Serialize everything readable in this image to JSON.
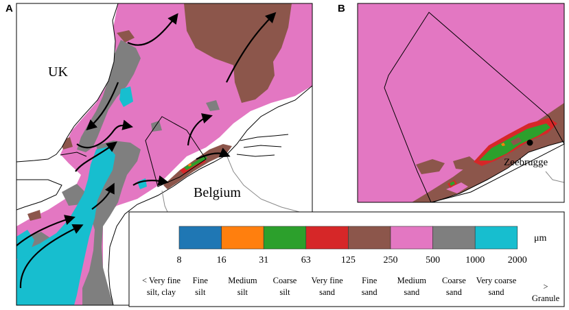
{
  "panels": [
    {
      "letter": "A",
      "labels": {
        "uk": "UK",
        "belgium": "Belgium"
      }
    },
    {
      "letter": "B",
      "labels": {
        "city": "Zeebrugge"
      }
    }
  ],
  "legend": {
    "unit": "μm",
    "ticks": [
      "8",
      "16",
      "31",
      "63",
      "125",
      "250",
      "500",
      "1000",
      "2000"
    ],
    "classes": [
      {
        "name": "< Very fine\nsilt, clay",
        "color": null
      },
      {
        "name": "Fine\nsilt",
        "color": "#1f77b4"
      },
      {
        "name": "Medium\nsilt",
        "color": "#ff7f0e"
      },
      {
        "name": "Coarse\nsilt",
        "color": "#2ca02c"
      },
      {
        "name": "Very fine\nsand",
        "color": "#d62728"
      },
      {
        "name": "Fine\nsand",
        "color": "#8c564b"
      },
      {
        "name": "Medium\nsand",
        "color": "#e377c2"
      },
      {
        "name": "Coarse\nsand",
        "color": "#7f7f7f"
      },
      {
        "name": "Very coarse\nsand",
        "color": "#17becf"
      },
      {
        "name": "> Granule",
        "color": null
      }
    ]
  },
  "colors": {
    "fine_silt": "#1f77b4",
    "medium_silt": "#ff7f0e",
    "coarse_silt": "#2ca02c",
    "very_fine_sand": "#d62728",
    "fine_sand": "#8c564b",
    "medium_sand": "#e377c2",
    "coarse_sand": "#7f7f7f",
    "very_coarse_sand": "#17becf"
  }
}
